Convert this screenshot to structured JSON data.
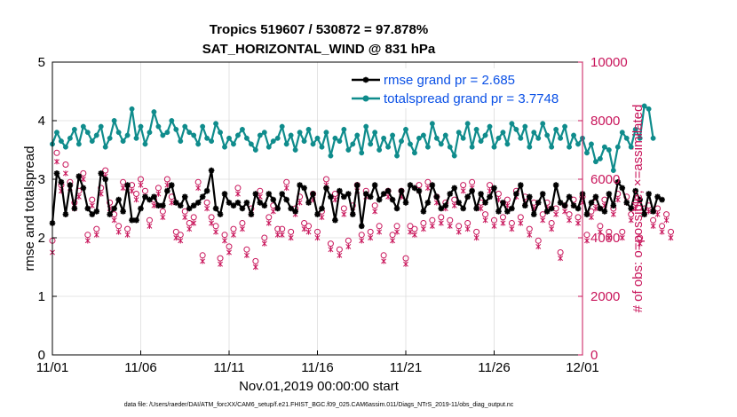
{
  "title_line1": "Tropics 519607 / 530872 = 97.878%",
  "title_line2": "SAT_HORIZONTAL_WIND @ 831 hPa",
  "xlabel": "Nov.01,2019 00:00:00 start",
  "ylabel_left": "rmse and totalspread",
  "ylabel_right": "# of obs: o=possible; ×=assimilated",
  "footer": "data file: /Users/raeder/DAI/ATM_forcXX/CAM6_setup/f.e21.FHIST_BGC.f09_025.CAM6assim.011/Diags_NTrS_2019-11/obs_diag_output.nc",
  "colors": {
    "rmse": "#000000",
    "spread": "#0f8c8c",
    "obs": "#c8145a",
    "legend_text": "#0a50e6",
    "grid": "#dcdcdc"
  },
  "chart_data": {
    "type": "line",
    "x_unit": "days since 2019-11-01 00:00",
    "x_step": 0.25,
    "xlim": [
      0,
      30
    ],
    "xticks": [
      0,
      5,
      10,
      15,
      20,
      25,
      30
    ],
    "xtick_labels": [
      "11/01",
      "11/06",
      "11/11",
      "11/16",
      "11/21",
      "11/26",
      "12/01"
    ],
    "ylim_left": [
      0,
      5
    ],
    "yticks_left": [
      "0",
      "1",
      "2",
      "3",
      "4",
      "5"
    ],
    "ylim_right": [
      0,
      10000
    ],
    "yticks_right": [
      "0",
      "2000",
      "4000",
      "6000",
      "8000",
      "10000"
    ],
    "legend": [
      {
        "name": "rmse grand pr = 2.685",
        "series": "rmse"
      },
      {
        "name": "totalspread grand pr = 3.7748",
        "series": "spread"
      }
    ],
    "series": [
      {
        "name": "rmse",
        "axis": "left",
        "values": [
          2.25,
          3.1,
          2.95,
          2.4,
          2.9,
          2.5,
          3.05,
          2.85,
          2.5,
          2.4,
          2.45,
          3.1,
          3.0,
          2.4,
          2.5,
          2.65,
          2.45,
          2.9,
          2.3,
          2.3,
          2.5,
          2.7,
          2.65,
          2.7,
          2.55,
          2.55,
          2.8,
          2.9,
          2.6,
          2.55,
          2.7,
          2.5,
          2.55,
          2.6,
          2.7,
          2.8,
          3.15,
          2.5,
          2.4,
          2.75,
          2.6,
          2.55,
          2.6,
          2.5,
          2.6,
          2.4,
          2.75,
          2.6,
          2.55,
          2.75,
          2.65,
          2.5,
          2.75,
          2.65,
          2.5,
          2.45,
          2.9,
          2.85,
          2.6,
          2.75,
          2.4,
          2.5,
          2.85,
          2.7,
          2.3,
          2.8,
          2.7,
          2.75,
          2.4,
          2.9,
          2.2,
          2.75,
          2.7,
          2.9,
          2.65,
          2.75,
          2.8,
          2.65,
          2.5,
          2.8,
          2.6,
          2.9,
          2.85,
          2.8,
          2.45,
          2.6,
          2.9,
          2.7,
          2.5,
          2.55,
          2.75,
          2.85,
          2.6,
          2.5,
          2.7,
          2.8,
          2.5,
          2.75,
          2.6,
          2.7,
          2.85,
          2.45,
          2.6,
          2.45,
          2.5,
          2.75,
          2.9,
          2.55,
          2.7,
          2.4,
          2.6,
          2.75,
          2.45,
          2.5,
          2.9,
          2.6,
          2.55,
          2.7,
          2.55,
          2.5,
          2.75,
          2.4,
          2.6,
          2.7,
          2.5,
          2.45,
          2.75,
          2.55,
          2.95,
          2.85,
          2.6,
          2.5,
          2.8,
          2.65,
          2.4,
          2.75,
          2.45,
          2.7,
          2.65
        ]
      },
      {
        "name": "totalspread",
        "axis": "left",
        "values": [
          3.6,
          3.8,
          3.65,
          3.55,
          3.7,
          3.85,
          3.6,
          3.9,
          3.8,
          3.65,
          3.75,
          3.9,
          3.55,
          3.7,
          4.0,
          3.8,
          3.65,
          3.75,
          4.2,
          3.7,
          3.9,
          3.6,
          3.8,
          4.15,
          3.9,
          3.75,
          3.8,
          4.0,
          3.85,
          3.65,
          3.9,
          3.8,
          3.75,
          3.6,
          3.9,
          3.7,
          3.65,
          3.95,
          3.8,
          3.55,
          3.7,
          3.6,
          3.75,
          3.85,
          3.7,
          3.6,
          3.5,
          3.75,
          3.8,
          3.55,
          3.65,
          3.7,
          3.9,
          3.6,
          3.75,
          3.5,
          3.8,
          3.65,
          3.85,
          3.6,
          3.7,
          3.55,
          3.8,
          3.4,
          3.7,
          3.65,
          3.85,
          3.5,
          3.6,
          3.75,
          3.45,
          3.9,
          3.6,
          3.8,
          3.5,
          3.7,
          3.55,
          3.75,
          3.4,
          3.65,
          3.85,
          3.6,
          3.45,
          3.7,
          3.75,
          3.55,
          3.95,
          3.7,
          3.6,
          3.75,
          3.55,
          3.4,
          3.8,
          3.7,
          3.95,
          3.55,
          3.85,
          3.65,
          3.75,
          3.9,
          3.55,
          3.7,
          3.8,
          3.6,
          3.95,
          3.85,
          3.7,
          3.9,
          3.55,
          3.8,
          3.7,
          3.95,
          3.75,
          3.55,
          3.85,
          3.7,
          3.9,
          3.55,
          3.75,
          3.6,
          3.7,
          3.45,
          3.6,
          3.3,
          3.35,
          3.55,
          3.5,
          3.15,
          3.55,
          3.8,
          3.7,
          3.55,
          3.85,
          3.7,
          4.25,
          4.2,
          3.7
        ]
      },
      {
        "name": "obs_possible",
        "axis": "right",
        "marker": "o",
        "values": [
          3900,
          6900,
          5800,
          6500,
          5900,
          5200,
          5600,
          6200,
          4100,
          5300,
          4300,
          5700,
          6300,
          5200,
          4800,
          4400,
          5900,
          4300,
          5800,
          5500,
          6000,
          5600,
          4600,
          5300,
          5700,
          4900,
          6000,
          5400,
          4200,
          4100,
          4900,
          4500,
          4700,
          5900,
          3400,
          5200,
          4700,
          4400,
          3300,
          4100,
          3700,
          4300,
          5700,
          4500,
          3600,
          5000,
          3200,
          5600,
          4000,
          4700,
          5100,
          4300,
          4300,
          5900,
          4200,
          5000,
          5400,
          4500,
          4400,
          5500,
          4200,
          4900,
          6000,
          3800,
          5500,
          3600,
          5000,
          3900,
          5100,
          5800,
          4100,
          5600,
          4200,
          5100,
          4400,
          3400,
          5600,
          4100,
          4400,
          5600,
          3300,
          4400,
          4300,
          5800,
          4500,
          5900,
          4600,
          5400,
          4700,
          5200,
          4600,
          5300,
          4400,
          5800,
          4500,
          5900,
          4200,
          5200,
          4800,
          5800,
          4600,
          5500,
          4700,
          5300,
          4500,
          5600,
          4700,
          5400,
          4300,
          5200,
          3900,
          4800,
          5200,
          4500,
          5000,
          3500,
          5100,
          4800,
          5300,
          4700,
          5400,
          4100,
          4900,
          5200,
          4400,
          5300,
          4200,
          5000,
          5500,
          4200,
          5400,
          4800,
          5200,
          4000,
          5000,
          5100,
          4600,
          5000,
          4400,
          4800,
          4200
        ]
      },
      {
        "name": "obs_assimilated",
        "axis": "right",
        "marker": "x",
        "values": [
          3500,
          6600,
          5600,
          6200,
          5700,
          5000,
          5400,
          6000,
          3900,
          5100,
          4100,
          5500,
          6100,
          5000,
          4600,
          4200,
          5700,
          4100,
          5600,
          5300,
          5800,
          5400,
          4400,
          5100,
          5500,
          4700,
          5800,
          5200,
          4000,
          3900,
          4700,
          4300,
          4500,
          5700,
          3200,
          5000,
          4500,
          4200,
          3100,
          3900,
          3500,
          4100,
          5500,
          4300,
          3400,
          4800,
          3000,
          5400,
          3800,
          4500,
          4900,
          4100,
          4100,
          5700,
          4000,
          4800,
          5200,
          4300,
          4200,
          5300,
          4000,
          4700,
          5800,
          3600,
          5300,
          3400,
          4800,
          3700,
          4900,
          5600,
          3900,
          5400,
          4000,
          4900,
          4200,
          3200,
          5400,
          3900,
          4200,
          5400,
          3100,
          4200,
          4100,
          5600,
          4300,
          5700,
          4400,
          5200,
          4500,
          5000,
          4400,
          5100,
          4200,
          5600,
          4300,
          5700,
          4000,
          5000,
          4600,
          5600,
          4400,
          5300,
          4500,
          5100,
          4300,
          5400,
          4500,
          5200,
          4100,
          5000,
          3700,
          4600,
          5000,
          4300,
          4800,
          3300,
          4900,
          4600,
          5100,
          4500,
          5200,
          3900,
          4700,
          5000,
          4200,
          5100,
          4000,
          4800,
          5300,
          4000,
          5200,
          4600,
          5000,
          3800,
          4800,
          4900,
          4400,
          4800,
          4200,
          4600,
          4000
        ]
      }
    ]
  }
}
